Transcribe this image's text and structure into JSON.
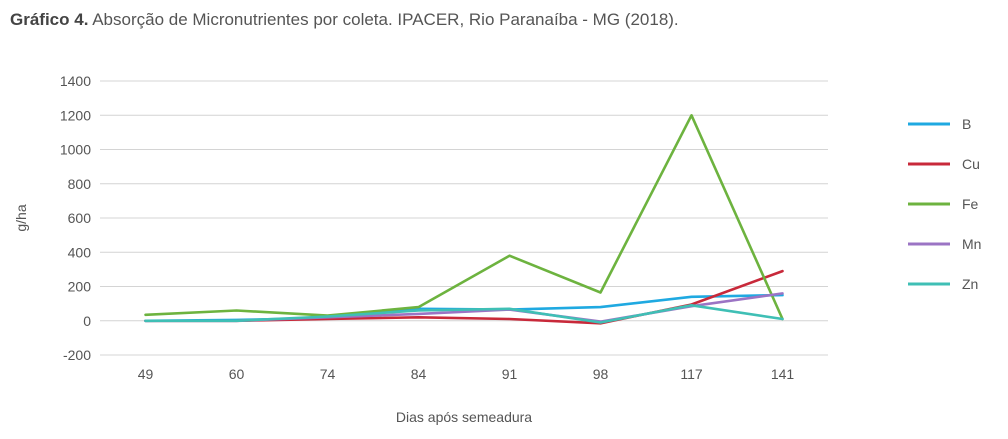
{
  "header": {
    "lead": "Gráfico 4.",
    "rest": " Absorção de Micronutrientes por coleta. IPACER, Rio Paranaíba - MG (2018)."
  },
  "chart_data": {
    "type": "line",
    "title": "",
    "xlabel": "Dias após semeadura",
    "ylabel": "g/ha",
    "ylim": [
      -200,
      1400
    ],
    "yticks": [
      "1400",
      "1200",
      "1000",
      "800",
      "600",
      "400",
      "200",
      "0",
      "-200"
    ],
    "categories": [
      "49",
      "60",
      "74",
      "84",
      "91",
      "98",
      "117",
      "141"
    ],
    "grid": true,
    "legend_position": "right",
    "series": [
      {
        "name": "B",
        "color": "#1fa9e1",
        "values": [
          0,
          5,
          15,
          70,
          65,
          80,
          140,
          150
        ]
      },
      {
        "name": "Cu",
        "color": "#c8293a",
        "values": [
          0,
          0,
          10,
          20,
          10,
          -15,
          95,
          290
        ]
      },
      {
        "name": "Fe",
        "color": "#6db33f",
        "values": [
          35,
          60,
          30,
          80,
          380,
          165,
          1200,
          10
        ]
      },
      {
        "name": "Mn",
        "color": "#9b74c4",
        "values": [
          0,
          0,
          20,
          40,
          65,
          -5,
          85,
          160
        ]
      },
      {
        "name": "Zn",
        "color": "#3fbfb5",
        "values": [
          0,
          0,
          25,
          60,
          70,
          -10,
          90,
          10
        ]
      }
    ]
  }
}
